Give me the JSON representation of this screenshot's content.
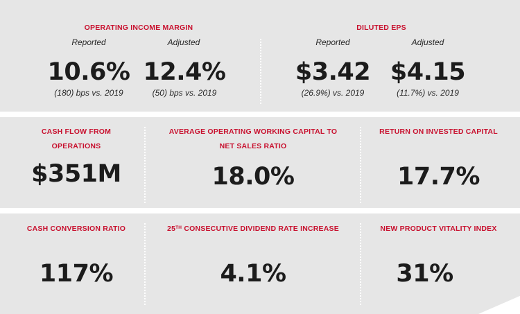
{
  "operating_income_margin": {
    "title": "OPERATING INCOME MARGIN",
    "reported": {
      "label": "Reported",
      "value": "10.6%",
      "note": "(180) bps vs. 2019"
    },
    "adjusted": {
      "label": "Adjusted",
      "value": "12.4%",
      "note": "(50) bps vs. 2019"
    }
  },
  "diluted_eps": {
    "title": "DILUTED EPS",
    "reported": {
      "label": "Reported",
      "value": "$3.42",
      "note": "(26.9%) vs. 2019"
    },
    "adjusted": {
      "label": "Adjusted",
      "value": "$4.15",
      "note": "(11.7%) vs. 2019"
    }
  },
  "cash_flow": {
    "title_line1": "CASH FLOW FROM",
    "title_line2": "OPERATIONS",
    "value": "$351M"
  },
  "working_capital": {
    "title_line1": "AVERAGE OPERATING WORKING CAPITAL TO",
    "title_line2": "NET SALES RATIO",
    "value": "18.0%"
  },
  "roic": {
    "title": "RETURN ON INVESTED CAPITAL",
    "value": "17.7%"
  },
  "cash_conversion": {
    "title": "CASH CONVERSION RATIO",
    "value": "117%"
  },
  "dividend": {
    "title_number": "25",
    "title_sup": "TH",
    "title_rest": " CONSECUTIVE DIVIDEND RATE INCREASE",
    "value": "4.1%"
  },
  "vitality": {
    "title": "NEW PRODUCT VITALITY INDEX",
    "value": "31%"
  }
}
